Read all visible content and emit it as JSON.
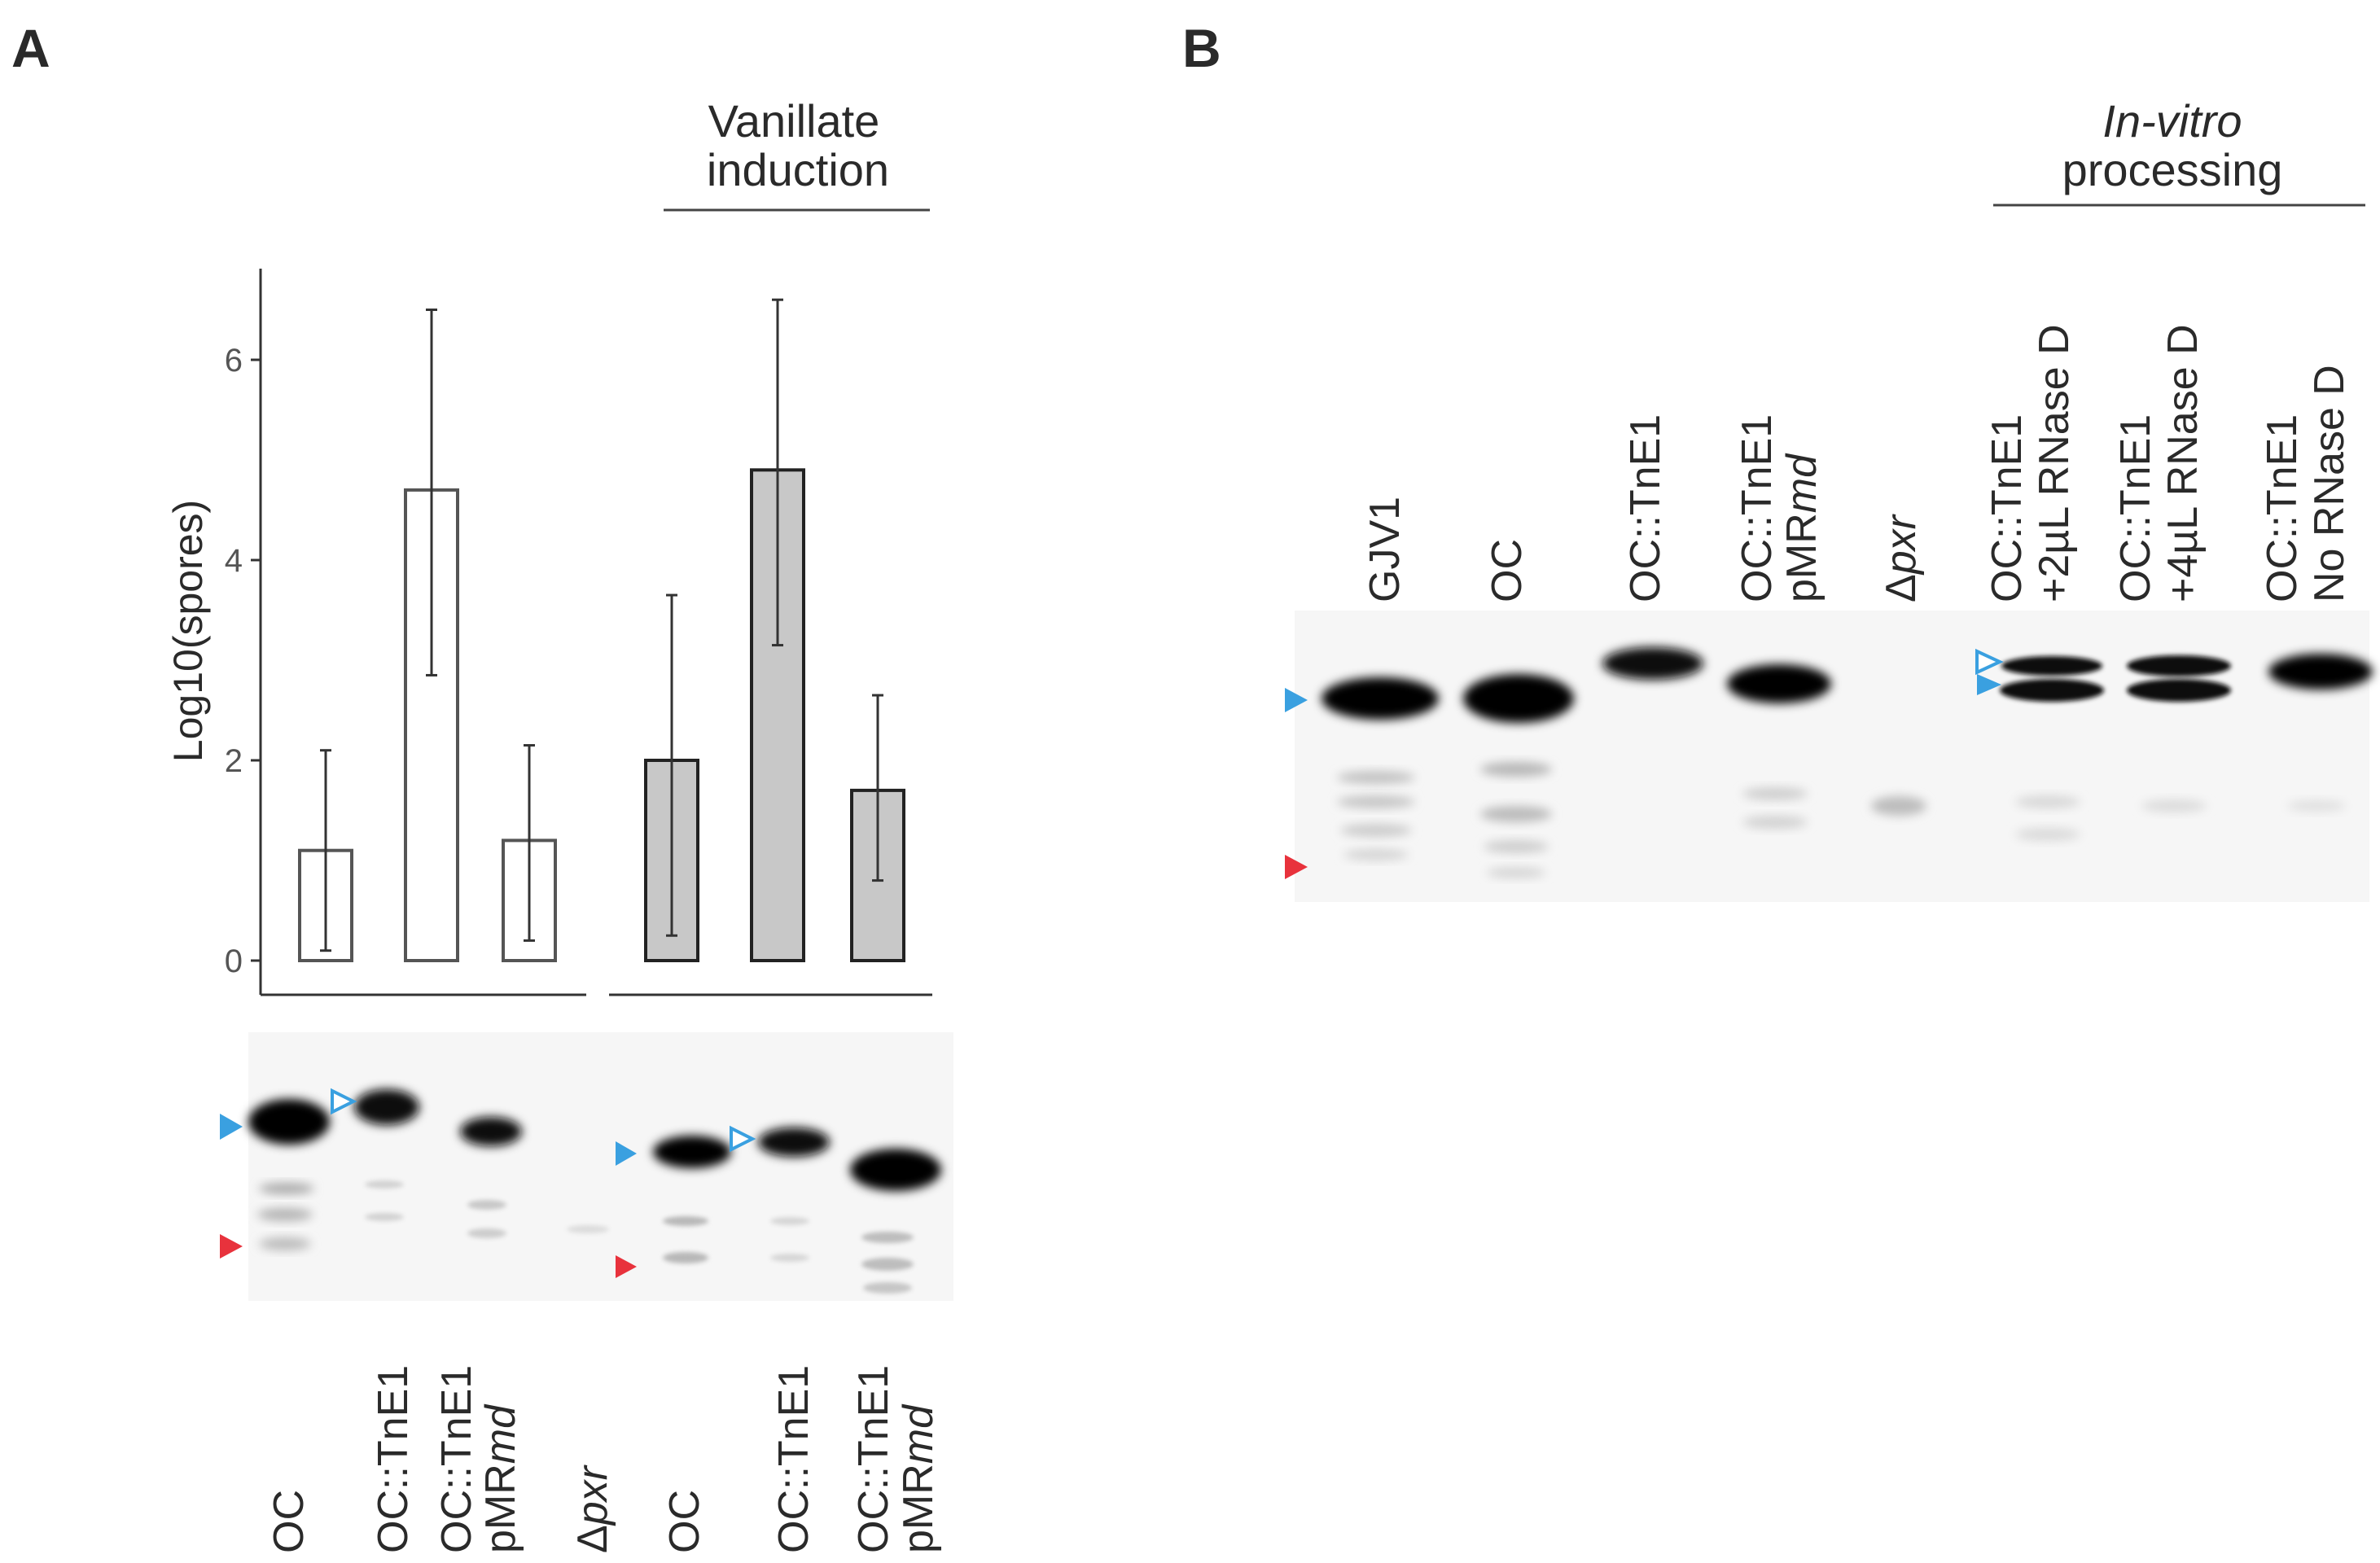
{
  "panel_a": {
    "letter": "A",
    "header_line1": "Vanillate",
    "header_line2": "induction",
    "lanes": [
      {
        "line1": "OC",
        "line2": ""
      },
      {
        "line1": "OC::TnE1",
        "line2": ""
      },
      {
        "line1": "OC::TnE1",
        "line2_prefix": "pMR",
        "line2_italic": "md"
      },
      {
        "italic": "pxr",
        "prefix": "Δ"
      },
      {
        "line1": "OC",
        "line2": ""
      },
      {
        "line1": "OC::TnE1",
        "line2": ""
      },
      {
        "line1": "OC::TnE1",
        "line2_prefix": "pMR",
        "line2_italic": "md"
      }
    ]
  },
  "panel_b": {
    "letter": "B",
    "header_italic": "In-vitro",
    "header_line2": "processing",
    "lanes": [
      {
        "line1": "GJV1",
        "line2": ""
      },
      {
        "line1": "OC",
        "line2": ""
      },
      {
        "line1": "OC::TnE1",
        "line2": ""
      },
      {
        "line1": "OC::TnE1",
        "line2_prefix": "pMR",
        "line2_italic": "md"
      },
      {
        "italic": "pxr",
        "prefix": "Δ"
      },
      {
        "line1": "OC::TnE1",
        "line2": "+2µL RNase D"
      },
      {
        "line1": "OC::TnE1",
        "line2": "+4µL RNase D"
      },
      {
        "line1": "OC::TnE1",
        "line2": "No RNase D"
      }
    ]
  },
  "colors": {
    "marker_blue": "#3aa0e0",
    "marker_red": "#e8323c",
    "bar_induced": "#c8c8c8",
    "bar_uninduced": "#ffffff"
  },
  "chart_data": {
    "type": "bar",
    "ylabel": "Log10(spores)",
    "ylim": [
      0,
      7
    ],
    "yticks": [
      0,
      2,
      4,
      6
    ],
    "categories": [
      "OC",
      "OC::TnE1",
      "OC::TnE1 pMRmd",
      "OC",
      "OC::TnE1",
      "OC::TnE1 pMRmd"
    ],
    "groups": [
      "uninduced",
      "uninduced",
      "uninduced",
      "induced",
      "induced",
      "induced"
    ],
    "values": [
      1.1,
      4.7,
      1.2,
      2.0,
      4.9,
      1.7
    ],
    "error_low": [
      0.1,
      2.85,
      0.2,
      0.25,
      3.15,
      0.8
    ],
    "error_high": [
      2.1,
      6.5,
      2.15,
      3.65,
      6.6,
      2.65
    ]
  }
}
